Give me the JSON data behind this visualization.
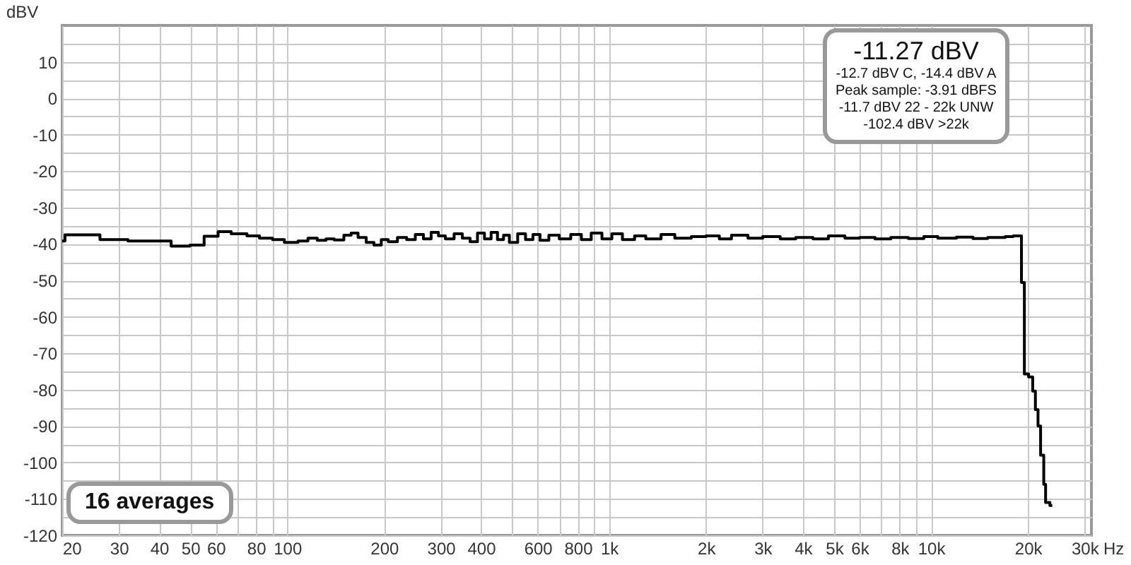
{
  "chart_data": {
    "type": "step",
    "ylabel": "dBV",
    "log": "x",
    "grid": true,
    "line_style": "solid",
    "marker": "none",
    "xlim": [
      20,
      31500
    ],
    "ylim": [
      -120,
      20
    ],
    "xticks": [
      20,
      30,
      40,
      50,
      60,
      {
        "value": 70,
        "label": null
      },
      80,
      {
        "value": 90,
        "label": null
      },
      100,
      200,
      300,
      400,
      {
        "value": 500,
        "label": null
      },
      600,
      {
        "value": 700,
        "label": null
      },
      800,
      {
        "value": 900,
        "label": null
      },
      {
        "value": 1000,
        "label": "1k"
      },
      {
        "value": 2000,
        "label": "2k"
      },
      {
        "value": 3000,
        "label": "3k"
      },
      {
        "value": 4000,
        "label": "4k"
      },
      {
        "value": 5000,
        "label": "5k"
      },
      {
        "value": 6000,
        "label": "6k"
      },
      {
        "value": 7000,
        "label": null
      },
      {
        "value": 8000,
        "label": "8k"
      },
      {
        "value": 9000,
        "label": null
      },
      {
        "value": 10000,
        "label": "10k"
      },
      {
        "value": 20000,
        "label": "20k"
      },
      {
        "value": 30000,
        "label": "30k"
      }
    ],
    "xlabel": "Hz",
    "yticks": [
      -120,
      {
        "value": -115,
        "label": null
      },
      -110,
      {
        "value": -105,
        "label": null
      },
      -100,
      {
        "value": -95,
        "label": null
      },
      -90,
      {
        "value": -85,
        "label": null
      },
      -80,
      {
        "value": -75,
        "label": null
      },
      -70,
      {
        "value": -65,
        "label": null
      },
      -60,
      {
        "value": -55,
        "label": null
      },
      -50,
      {
        "value": -45,
        "label": null
      },
      -40,
      {
        "value": -35,
        "label": null
      },
      -30,
      {
        "value": -25,
        "label": null
      },
      -20,
      {
        "value": -15,
        "label": null
      },
      -10,
      {
        "value": -5,
        "label": null
      },
      0,
      {
        "value": 5,
        "label": null
      },
      10,
      {
        "value": 15,
        "label": null
      }
    ],
    "series": [
      {
        "color": "#000000",
        "x": [
          20,
          20.4,
          26.2,
          32,
          43.6,
          49.9,
          55.2,
          61,
          67,
          75,
          82,
          90,
          98,
          108,
          116,
          124,
          132,
          140,
          150,
          158,
          166,
          176,
          186,
          196,
          206,
          220,
          235,
          250,
          265,
          280,
          295,
          310,
          330,
          350,
          370,
          390,
          410,
          430,
          450,
          470,
          490,
          520,
          550,
          580,
          610,
          650,
          700,
          760,
          820,
          880,
          950,
          1020,
          1100,
          1200,
          1300,
          1450,
          1600,
          1800,
          2000,
          2200,
          2400,
          2700,
          3000,
          3400,
          3800,
          4300,
          4800,
          5400,
          6000,
          6700,
          7500,
          8500,
          9500,
          10500,
          12000,
          13500,
          15000,
          17000,
          18000,
          19100,
          19500,
          20100,
          20700,
          21100,
          21500,
          21900,
          22400,
          22700,
          23400,
          23800
        ],
        "values": [
          -39.2,
          -37.5,
          -38.8,
          -39.2,
          -40.6,
          -40.3,
          -37.9,
          -36.6,
          -37.2,
          -37.8,
          -38.4,
          -38.8,
          -39.6,
          -39.2,
          -38.4,
          -39,
          -38.6,
          -38.9,
          -37.6,
          -37,
          -38.2,
          -39.6,
          -40.3,
          -38.8,
          -39.4,
          -38.2,
          -38.8,
          -37.4,
          -38.6,
          -36.8,
          -37.8,
          -38.6,
          -37.2,
          -38.4,
          -39.4,
          -37,
          -38.6,
          -36.8,
          -38.8,
          -37.6,
          -39.6,
          -37.2,
          -38.8,
          -37.4,
          -39,
          -37.6,
          -38.6,
          -37.4,
          -38.8,
          -37,
          -38.6,
          -37.2,
          -38.8,
          -37.8,
          -38.6,
          -37.4,
          -38.4,
          -38,
          -37.8,
          -38.6,
          -37.6,
          -38.4,
          -38,
          -38.6,
          -38.2,
          -38.6,
          -37.8,
          -38.4,
          -38.2,
          -38.6,
          -38.2,
          -38.5,
          -38,
          -38.4,
          -38.1,
          -38.5,
          -38.2,
          -38,
          -37.8,
          -50.6,
          -75.7,
          -76.5,
          -80.4,
          -85.5,
          -90,
          -98,
          -106,
          -111,
          -111.8,
          -111.8
        ]
      }
    ],
    "annotations": [
      "-11.27 dBV",
      "-12.7 dBV C, -14.4 dBV A",
      "Peak sample: -3.91 dBFS",
      "-11.7 dBV 22 - 22k UNW",
      "-102.4 dBV >22k",
      "16 averages"
    ]
  }
}
